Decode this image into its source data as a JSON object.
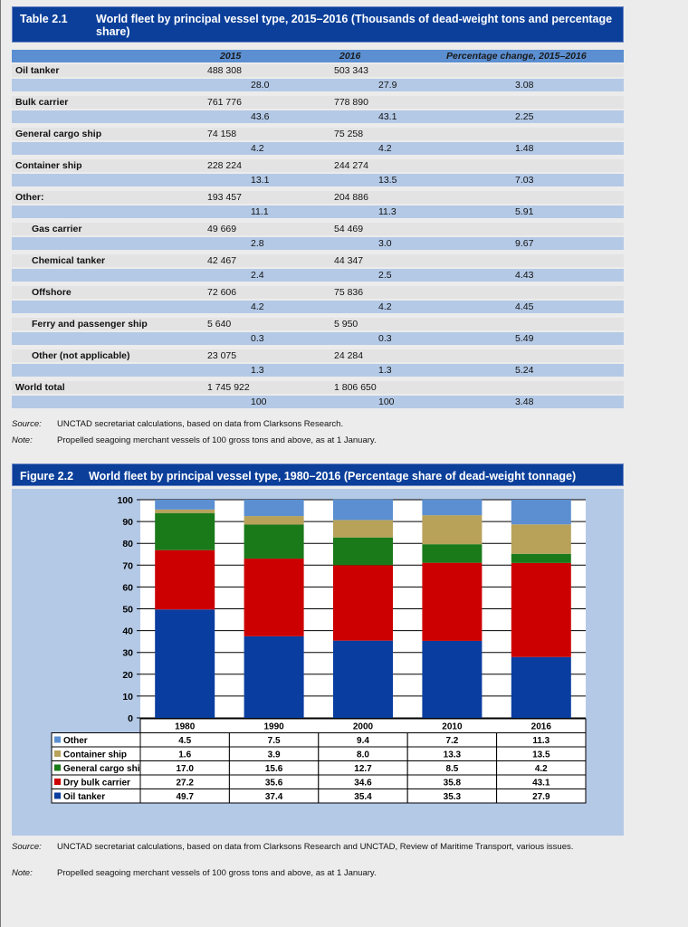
{
  "table": {
    "label": "Table 2.1",
    "title": "World fleet by principal vessel type, 2015–2016 (Thousands of dead-weight tons and percentage share)",
    "columns": [
      "2015",
      "2016",
      "Percentage change, 2015–2016"
    ],
    "rows": [
      {
        "label": "Oil tanker",
        "sub": false,
        "v2015": "488 308",
        "v2016": "503 343",
        "p2015": "28.0",
        "p2016": "27.9",
        "change": "3.08"
      },
      {
        "label": "Bulk carrier",
        "sub": false,
        "v2015": "761 776",
        "v2016": "778 890",
        "p2015": "43.6",
        "p2016": "43.1",
        "change": "2.25"
      },
      {
        "label": "General cargo ship",
        "sub": false,
        "v2015": "74 158",
        "v2016": "75 258",
        "p2015": "4.2",
        "p2016": "4.2",
        "change": "1.48"
      },
      {
        "label": "Container ship",
        "sub": false,
        "v2015": "228 224",
        "v2016": "244 274",
        "p2015": "13.1",
        "p2016": "13.5",
        "change": "7.03"
      },
      {
        "label": "Other:",
        "sub": false,
        "v2015": "193 457",
        "v2016": "204 886",
        "p2015": "11.1",
        "p2016": "11.3",
        "change": "5.91"
      },
      {
        "label": "Gas carrier",
        "sub": true,
        "v2015": "49 669",
        "v2016": "54 469",
        "p2015": "2.8",
        "p2016": "3.0",
        "change": "9.67"
      },
      {
        "label": "Chemical tanker",
        "sub": true,
        "v2015": "42 467",
        "v2016": "44 347",
        "p2015": "2.4",
        "p2016": "2.5",
        "change": "4.43"
      },
      {
        "label": "Offshore",
        "sub": true,
        "v2015": "72 606",
        "v2016": "75 836",
        "p2015": "4.2",
        "p2016": "4.2",
        "change": "4.45"
      },
      {
        "label": "Ferry and passenger ship",
        "sub": true,
        "v2015": "5 640",
        "v2016": "5 950",
        "p2015": "0.3",
        "p2016": "0.3",
        "change": "5.49"
      },
      {
        "label": "Other (not applicable)",
        "sub": true,
        "v2015": "23 075",
        "v2016": "24 284",
        "p2015": "1.3",
        "p2016": "1.3",
        "change": "5.24"
      },
      {
        "label": "World total",
        "sub": false,
        "v2015": "1 745 922",
        "v2016": "1 806 650",
        "p2015": "100",
        "p2016": "100",
        "change": "3.48"
      }
    ],
    "source_key": "Source:",
    "source_text": "UNCTAD secretariat calculations, based on data from Clarksons Research.",
    "note_key": "Note:",
    "note_text": "Propelled seagoing merchant vessels of 100 gross tons and above, as at 1 January."
  },
  "figure": {
    "label": "Figure 2.2",
    "title": "World fleet by principal vessel type, 1980–2016 (Percentage share of dead-weight tonnage)",
    "source_key": "Source:",
    "source_text": "UNCTAD secretariat calculations, based on data from Clarksons Research and UNCTAD, Review of Maritime Transport, various issues.",
    "note_key": "Note:",
    "note_text": "Propelled seagoing merchant vessels of 100 gross tons and above, as at 1 January."
  },
  "chart_data": {
    "type": "bar",
    "stacked": true,
    "title": "World fleet by principal vessel type, 1980–2016 (Percentage share of dead-weight tonnage)",
    "categories": [
      "1980",
      "1990",
      "2000",
      "2010",
      "2016"
    ],
    "ylim": [
      0,
      100
    ],
    "yticks": [
      "0",
      "10",
      "20",
      "30",
      "40",
      "50",
      "60",
      "70",
      "80",
      "90",
      "100"
    ],
    "grid": true,
    "series": [
      {
        "name": "Oil tanker",
        "color": "#0a3da0",
        "values": [
          "49.7",
          "37.4",
          "35.4",
          "35.3",
          "27.9"
        ]
      },
      {
        "name": "Dry bulk carrier",
        "color": "#cc0000",
        "values": [
          "27.2",
          "35.6",
          "34.6",
          "35.8",
          "43.1"
        ]
      },
      {
        "name": "General cargo ship",
        "color": "#1a7a1a",
        "values": [
          "17.0",
          "15.6",
          "12.7",
          "8.5",
          "4.2"
        ]
      },
      {
        "name": "Container ship",
        "color": "#b8a25a",
        "values": [
          "1.6",
          "3.9",
          "8.0",
          "13.3",
          "13.5"
        ]
      },
      {
        "name": "Other",
        "color": "#5b8fd1",
        "values": [
          "4.5",
          "7.5",
          "9.4",
          "7.2",
          "11.3"
        ]
      }
    ],
    "legend_order": [
      "Other",
      "Container ship",
      "General cargo ship",
      "Dry bulk carrier",
      "Oil tanker"
    ]
  }
}
